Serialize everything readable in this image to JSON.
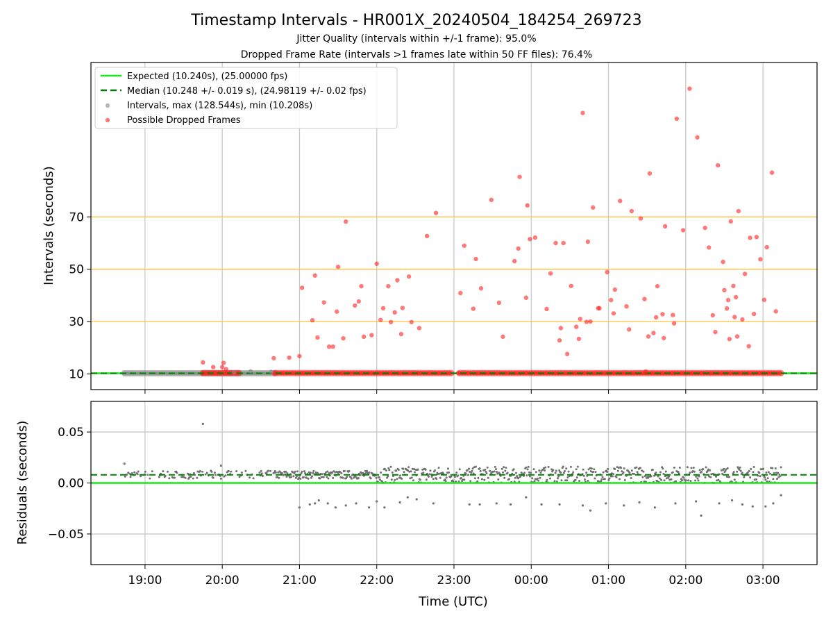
{
  "title": "Timestamp Intervals - HR001X_20240504_184254_269723",
  "subtitle_1": "Jitter Quality (intervals within +/-1 frame): 95.0%",
  "subtitle_2": "Dropped Frame Rate (intervals >1 frames late within 50 FF files): 76.4%",
  "colors": {
    "expected": "#19e619",
    "median": "#008000",
    "intervals": "#8c8c8c",
    "dropped": "#ff2020",
    "threshold": "#ffc03c",
    "grid": "#c8c8c8"
  },
  "chart_data": [
    {
      "type": "scatter",
      "ylabel": "Intervals (seconds)",
      "yticks": [
        10,
        30,
        50,
        70
      ],
      "threshold_lines": [
        30,
        50,
        70
      ],
      "xlim": [
        "18:18",
        "03:42"
      ],
      "ylim": [
        4.0,
        129.0
      ],
      "grid": true,
      "legend_position": "top-left",
      "legend": [
        "Expected (10.240s), (25.00000 fps)",
        "Median (10.248 +/- 0.019 s), (24.98119 +/- 0.02 fps)",
        "Intervals, max (128.544s), min (10.208s)",
        "Possible Dropped Frames"
      ],
      "expected_value": 10.24,
      "median_value": 10.248,
      "baseline_series": [
        {
          "name": "Intervals",
          "from": "18:44",
          "to": "20:41",
          "y": 10.25
        },
        {
          "name": "Possible Dropped Frames",
          "from": "19:45",
          "to": "20:13",
          "y": 10.3
        },
        {
          "name": "Possible Dropped Frames",
          "from": "20:41",
          "to": "22:58",
          "y": 10.3
        },
        {
          "name": "Possible Dropped Frames",
          "from": "23:04",
          "to": "03:14",
          "y": 10.3
        }
      ],
      "intervals_points": [
        [
          "20:22",
          11.0
        ],
        [
          "20:38",
          10.8
        ],
        [
          "20:09",
          10.6
        ]
      ],
      "dropped_points": [
        [
          "19:45",
          14.4
        ],
        [
          "19:53",
          12.6
        ],
        [
          "20:00",
          12.6
        ],
        [
          "20:01",
          14.2
        ],
        [
          "20:03",
          11.8
        ],
        [
          "20:40",
          16.0
        ],
        [
          "20:52",
          16.2
        ],
        [
          "21:00",
          16.8
        ],
        [
          "21:02",
          42.9
        ],
        [
          "21:10",
          30.5
        ],
        [
          "21:12",
          47.6
        ],
        [
          "21:14",
          23.9
        ],
        [
          "21:19",
          37.3
        ],
        [
          "21:23",
          20.4
        ],
        [
          "21:26",
          20.4
        ],
        [
          "21:29",
          33.8
        ],
        [
          "21:30",
          50.9
        ],
        [
          "21:34",
          23.6
        ],
        [
          "21:36",
          68.2
        ],
        [
          "21:43",
          36.1
        ],
        [
          "21:46",
          37.7
        ],
        [
          "21:48",
          43.5
        ],
        [
          "21:50",
          24.2
        ],
        [
          "21:56",
          24.8
        ],
        [
          "22:00",
          52.1
        ],
        [
          "22:03",
          30.6
        ],
        [
          "22:05",
          35.1
        ],
        [
          "22:09",
          43.5
        ],
        [
          "22:11",
          29.8
        ],
        [
          "22:14",
          33.5
        ],
        [
          "22:16",
          45.8
        ],
        [
          "22:19",
          25.2
        ],
        [
          "22:20",
          35.2
        ],
        [
          "22:25",
          47.2
        ],
        [
          "22:27",
          29.8
        ],
        [
          "22:33",
          27.5
        ],
        [
          "22:39",
          62.7
        ],
        [
          "22:46",
          71.5
        ],
        [
          "23:05",
          40.9
        ],
        [
          "23:08",
          59.0
        ],
        [
          "23:15",
          34.9
        ],
        [
          "23:17",
          53.9
        ],
        [
          "23:21",
          42.7
        ],
        [
          "23:29",
          76.5
        ],
        [
          "23:35",
          37.2
        ],
        [
          "23:38",
          24.2
        ],
        [
          "23:47",
          53.1
        ],
        [
          "23:50",
          57.9
        ],
        [
          "23:51",
          85.3
        ],
        [
          "23:56",
          39.1
        ],
        [
          "23:57",
          74.4
        ],
        [
          "23:59",
          61.5
        ],
        [
          "00:03",
          62.1
        ],
        [
          "00:12",
          34.8
        ],
        [
          "00:15",
          48.4
        ],
        [
          "00:19",
          60.0
        ],
        [
          "00:22",
          22.8
        ],
        [
          "00:23",
          27.5
        ],
        [
          "00:25",
          60.0
        ],
        [
          "00:28",
          17.6
        ],
        [
          "00:31",
          43.6
        ],
        [
          "00:35",
          28.0
        ],
        [
          "00:37",
          23.4
        ],
        [
          "00:38",
          31.0
        ],
        [
          "00:40",
          109.7
        ],
        [
          "00:43",
          29.9
        ],
        [
          "00:44",
          60.5
        ],
        [
          "00:46",
          30.0
        ],
        [
          "00:48",
          73.6
        ],
        [
          "00:52",
          35.1
        ],
        [
          "00:53",
          35.1
        ],
        [
          "00:59",
          48.9
        ],
        [
          "01:02",
          38.2
        ],
        [
          "01:04",
          33.1
        ],
        [
          "01:05",
          42.2
        ],
        [
          "01:09",
          76.1
        ],
        [
          "01:14",
          35.8
        ],
        [
          "01:16",
          27.0
        ],
        [
          "01:18",
          72.2
        ],
        [
          "01:25",
          69.4
        ],
        [
          "01:28",
          38.6
        ],
        [
          "01:29",
          10.9
        ],
        [
          "01:31",
          24.3
        ],
        [
          "01:32",
          86.6
        ],
        [
          "01:35",
          25.6
        ],
        [
          "01:37",
          31.6
        ],
        [
          "01:38",
          43.5
        ],
        [
          "01:42",
          32.8
        ],
        [
          "01:43",
          23.7
        ],
        [
          "01:44",
          66.4
        ],
        [
          "01:50",
          32.5
        ],
        [
          "01:51",
          29.3
        ],
        [
          "01:53",
          107.5
        ],
        [
          "01:58",
          64.9
        ],
        [
          "02:03",
          119.0
        ],
        [
          "02:09",
          100.4
        ],
        [
          "02:15",
          65.8
        ],
        [
          "02:18",
          58.3
        ],
        [
          "02:21",
          32.4
        ],
        [
          "02:23",
          26.0
        ],
        [
          "02:25",
          89.7
        ],
        [
          "02:29",
          52.8
        ],
        [
          "02:30",
          42.0
        ],
        [
          "02:32",
          35.0
        ],
        [
          "02:33",
          38.2
        ],
        [
          "02:34",
          23.3
        ],
        [
          "02:35",
          68.3
        ],
        [
          "02:37",
          43.6
        ],
        [
          "02:38",
          31.7
        ],
        [
          "02:39",
          39.3
        ],
        [
          "02:40",
          24.3
        ],
        [
          "02:41",
          72.2
        ],
        [
          "02:44",
          30.8
        ],
        [
          "02:46",
          48.2
        ],
        [
          "02:49",
          20.6
        ],
        [
          "02:50",
          62.0
        ],
        [
          "02:53",
          32.9
        ],
        [
          "02:55",
          62.3
        ],
        [
          "02:58",
          53.8
        ],
        [
          "03:01",
          38.3
        ],
        [
          "03:03",
          58.4
        ],
        [
          "03:07",
          86.9
        ],
        [
          "03:10",
          33.9
        ]
      ]
    },
    {
      "type": "scatter",
      "xlabel": "Time (UTC)",
      "ylabel": "Residuals (seconds)",
      "yticks": [
        -0.05,
        0.0,
        0.05
      ],
      "ytick_labels": [
        "−0.05",
        "0.00",
        "0.05"
      ],
      "xticks": [
        "19:00",
        "20:00",
        "21:00",
        "22:00",
        "23:00",
        "00:00",
        "01:00",
        "02:00",
        "03:00"
      ],
      "xlim": [
        "18:18",
        "03:42"
      ],
      "ylim": [
        -0.08,
        0.08
      ],
      "grid": true,
      "expected_residual": 0.0,
      "median_residual": 0.008,
      "outliers": [
        [
          "19:45",
          0.058
        ],
        [
          "18:44",
          0.019
        ],
        [
          "19:59",
          0.017
        ],
        [
          "21:00",
          -0.024
        ],
        [
          "21:08",
          -0.021
        ],
        [
          "21:12",
          -0.02
        ],
        [
          "21:15",
          -0.017
        ],
        [
          "21:22",
          -0.02
        ],
        [
          "21:28",
          -0.024
        ],
        [
          "21:36",
          -0.022
        ],
        [
          "21:44",
          -0.02
        ],
        [
          "21:54",
          -0.024
        ],
        [
          "22:00",
          -0.018
        ],
        [
          "22:06",
          -0.024
        ],
        [
          "22:18",
          -0.019
        ],
        [
          "22:24",
          -0.014
        ],
        [
          "22:31",
          -0.016
        ],
        [
          "22:44",
          -0.02
        ],
        [
          "23:12",
          -0.021
        ],
        [
          "23:20",
          -0.021
        ],
        [
          "23:33",
          -0.02
        ],
        [
          "23:44",
          -0.021
        ],
        [
          "23:56",
          -0.014
        ],
        [
          "00:08",
          -0.021
        ],
        [
          "00:22",
          -0.021
        ],
        [
          "00:40",
          -0.022
        ],
        [
          "00:46",
          -0.027
        ],
        [
          "00:58",
          -0.02
        ],
        [
          "01:12",
          -0.022
        ],
        [
          "01:24",
          -0.019
        ],
        [
          "01:36",
          -0.024
        ],
        [
          "01:52",
          -0.02
        ],
        [
          "02:08",
          -0.018
        ],
        [
          "02:12",
          -0.032
        ],
        [
          "02:26",
          -0.02
        ],
        [
          "02:36",
          -0.017
        ],
        [
          "02:44",
          -0.021
        ],
        [
          "02:52",
          -0.023
        ],
        [
          "03:02",
          -0.023
        ],
        [
          "03:08",
          -0.02
        ],
        [
          "03:14",
          -0.012
        ]
      ]
    }
  ]
}
